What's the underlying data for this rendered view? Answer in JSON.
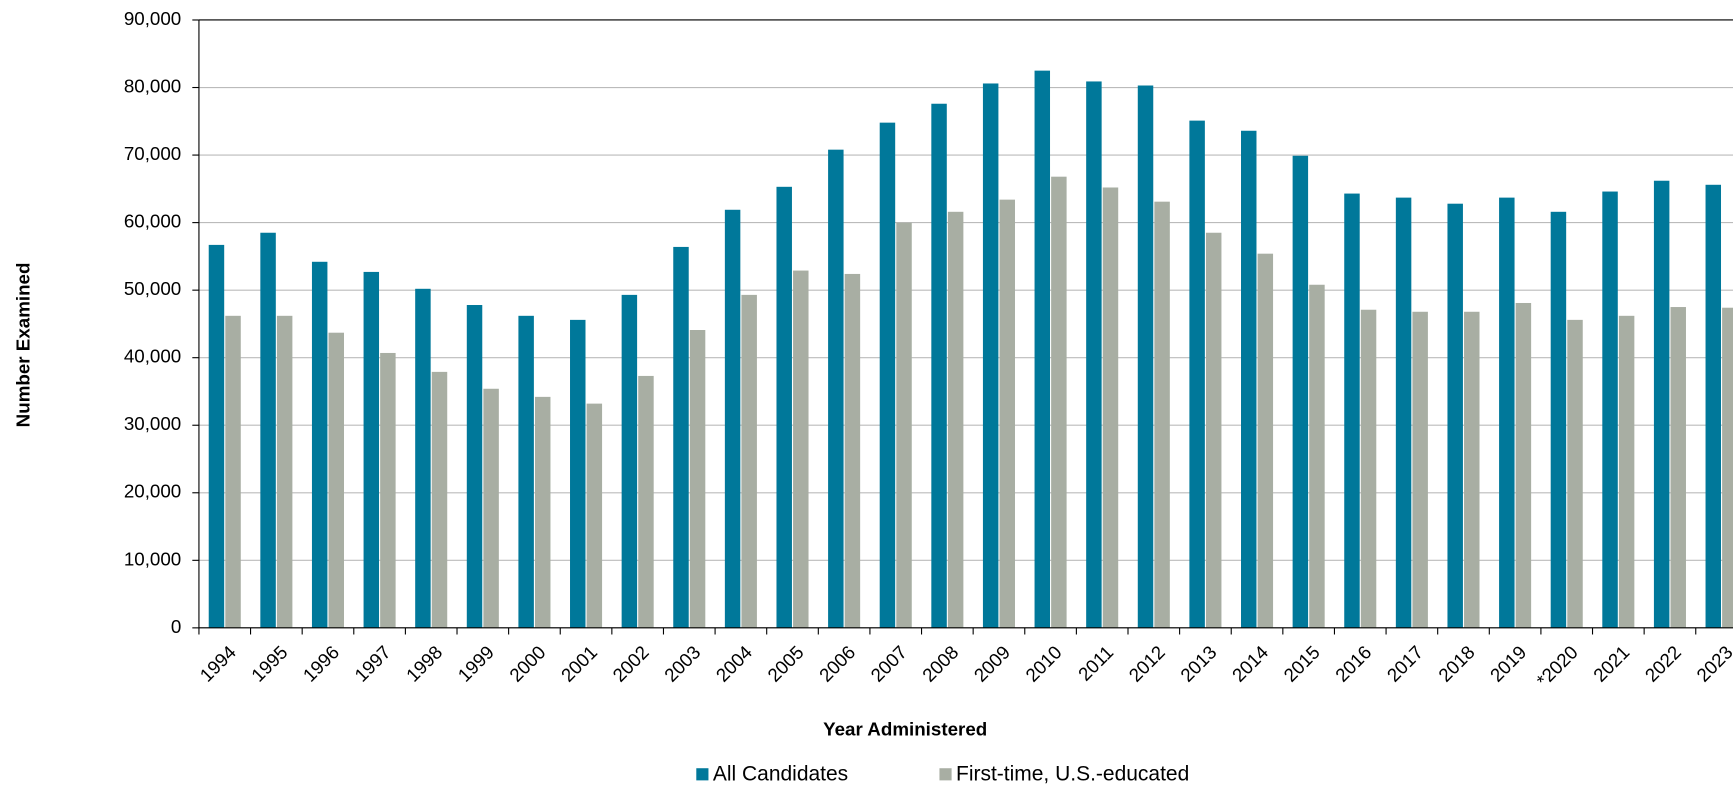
{
  "chart_data": {
    "type": "bar",
    "x_label": "Year Administered",
    "y_label": "Number Examined",
    "categories": [
      "1994",
      "1995",
      "1996",
      "1997",
      "1998",
      "1999",
      "2000",
      "2001",
      "2002",
      "2003",
      "2004",
      "2005",
      "2006",
      "2007",
      "2008",
      "2009",
      "2010",
      "2011",
      "2012",
      "2013",
      "2014",
      "2015",
      "2016",
      "2017",
      "2018",
      "2019",
      "*2020",
      "2021",
      "2022",
      "2023"
    ],
    "series": [
      {
        "name": "All Candidates",
        "color": "#00789a",
        "values": [
          56700,
          58500,
          54200,
          52700,
          50200,
          47800,
          46200,
          45600,
          49300,
          56400,
          61900,
          65300,
          70800,
          74800,
          77600,
          80600,
          82500,
          80900,
          80300,
          75100,
          73600,
          69900,
          64300,
          63700,
          62800,
          63700,
          61600,
          64600,
          66200,
          65600
        ]
      },
      {
        "name": "First-time, U.S.-educated",
        "color": "#a8aea3",
        "values": [
          46200,
          46200,
          43700,
          40700,
          37900,
          35400,
          34200,
          33200,
          37300,
          44100,
          49300,
          52900,
          52400,
          60000,
          61600,
          63400,
          66800,
          65200,
          63100,
          58500,
          55400,
          50800,
          47100,
          46800,
          46800,
          48100,
          45600,
          46200,
          47500,
          47400
        ]
      }
    ],
    "ylim": [
      0,
      90000
    ],
    "yticks": [
      0,
      {
        "value": 10000,
        "label": "10,000"
      },
      {
        "value": 20000,
        "label": "20,000"
      },
      {
        "value": 30000,
        "label": "30,000"
      },
      {
        "value": 40000,
        "label": "40,000"
      },
      {
        "value": 50000,
        "label": "50,000"
      },
      {
        "value": 60000,
        "label": "60,000"
      },
      {
        "value": 70000,
        "label": "70,000"
      },
      {
        "value": 80000,
        "label": "80,000"
      },
      {
        "value": 90000,
        "label": "90,000"
      }
    ],
    "grid": true
  }
}
